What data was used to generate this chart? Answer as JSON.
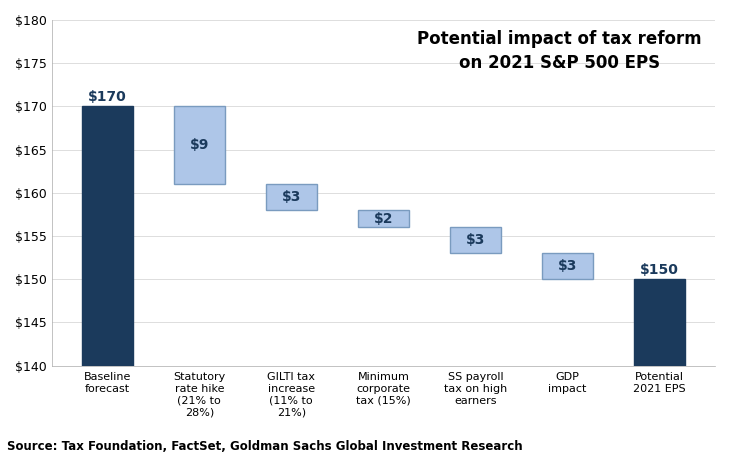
{
  "categories": [
    "Baseline\nforecast",
    "Statutory\nrate hike\n(21% to\n28%)",
    "GILTI tax\nincrease\n(11% to\n21%)",
    "Minimum\ncorporate\ntax (15%)",
    "SS payroll\ntax on high\nearners",
    "GDP\nimpact",
    "Potential\n2021 EPS"
  ],
  "bar_bottoms": [
    140,
    161,
    158,
    156,
    153,
    150,
    140
  ],
  "bar_heights": [
    30,
    9,
    3,
    2,
    3,
    3,
    10
  ],
  "labels": [
    "$170",
    "$9",
    "$3",
    "$2",
    "$3",
    "$3",
    "$150"
  ],
  "bar_colors": [
    "#1b3a5c",
    "#aec6e8",
    "#aec6e8",
    "#aec6e8",
    "#aec6e8",
    "#aec6e8",
    "#1b3a5c"
  ],
  "edge_colors": [
    "#1b3a5c",
    "#7a9bbf",
    "#7a9bbf",
    "#7a9bbf",
    "#7a9bbf",
    "#7a9bbf",
    "#1b3a5c"
  ],
  "ylim": [
    140,
    180
  ],
  "yticks": [
    140,
    145,
    150,
    155,
    160,
    165,
    170,
    175,
    180
  ],
  "title_line1": "Potential impact of tax reform",
  "title_line2": "on 2021 S&P 500 EPS",
  "source_text": "Source: Tax Foundation, FactSet, Goldman Sachs Global Investment Research",
  "title_fontsize": 12,
  "label_fontsize": 10,
  "tick_fontsize": 9,
  "source_fontsize": 8.5,
  "dark_color": "#1b3a5c",
  "light_label_color": "#1b3a5c",
  "background_color": "#ffffff"
}
